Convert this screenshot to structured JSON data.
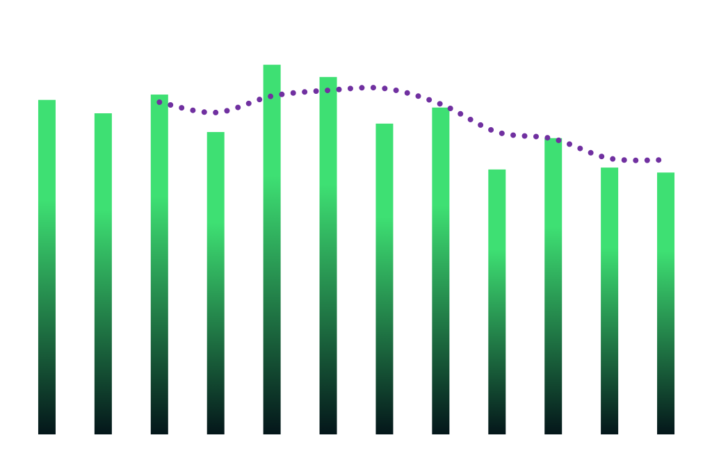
{
  "chart_data": {
    "type": "bar",
    "categories": [
      null,
      null,
      null,
      null,
      null,
      null,
      null,
      null,
      null,
      null,
      null,
      null
    ],
    "series": [
      {
        "type": "bar",
        "color": "#3ee073",
        "gradient_bottom": "#04161a",
        "values": [
          87.5,
          84,
          88.9,
          79.1,
          96.7,
          93.5,
          81.3,
          85.5,
          69.3,
          77.5,
          69.8,
          68.5
        ]
      },
      {
        "type": "line",
        "color": "#7030a0",
        "values": [
          null,
          null,
          86.9,
          84.2,
          88.5,
          90,
          90.5,
          86.4,
          79.1,
          77.3,
          72.2,
          71.8
        ]
      }
    ],
    "ylim": [
      0,
      100
    ]
  }
}
